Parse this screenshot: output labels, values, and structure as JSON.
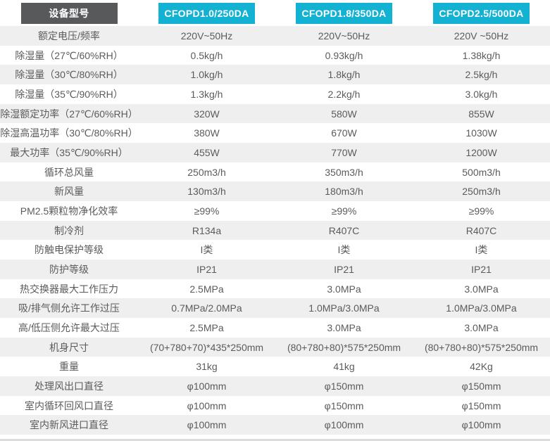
{
  "header": {
    "label_col_title": "设备型号",
    "models": [
      "CFOPD1.0/250DA",
      "CFOPD1.8/350DA",
      "CFOPD2.5/500DA"
    ]
  },
  "colors": {
    "header_dark_bg": "#58595b",
    "header_cyan_bg": "#14b2d2",
    "row_alt_bg": "#efefef",
    "text": "#5a5b5d",
    "header_text": "#ffffff",
    "bottom_border": "#dcdcdc"
  },
  "rows": [
    {
      "label": "额定电压/频率",
      "values": [
        "220V~50Hz",
        "220V~50Hz",
        "220V ~50Hz"
      ]
    },
    {
      "label": "除湿量（27℃/60%RH）",
      "values": [
        "0.5kg/h",
        "0.93kg/h",
        "1.38kg/h"
      ]
    },
    {
      "label": "除湿量（30℃/80%RH）",
      "values": [
        "1.0kg/h",
        "1.8kg/h",
        "2.5kg/h"
      ]
    },
    {
      "label": "除湿量（35℃/90%RH）",
      "values": [
        "1.3kg/h",
        "2.2kg/h",
        "3.0kg/h"
      ]
    },
    {
      "label": "除湿额定功率（27℃/60%RH）",
      "values": [
        "320W",
        "580W",
        "855W"
      ]
    },
    {
      "label": "除湿高温功率（30℃/80%RH）",
      "values": [
        "380W",
        "670W",
        "1030W"
      ]
    },
    {
      "label": "最大功率（35℃/90%RH）",
      "values": [
        "455W",
        "770W",
        "1200W"
      ]
    },
    {
      "label": "循环总风量",
      "values": [
        "250m3/h",
        "350m3/h",
        "500m3/h"
      ]
    },
    {
      "label": "新风量",
      "values": [
        "130m3/h",
        "180m3/h",
        "250m3/h"
      ]
    },
    {
      "label": "PM2.5颗粒物净化效率",
      "values": [
        "≥99%",
        "≥99%",
        "≥99%"
      ]
    },
    {
      "label": "制冷剂",
      "values": [
        "R134a",
        "R407C",
        "R407C"
      ]
    },
    {
      "label": "防触电保护等级",
      "values": [
        "I类",
        "I类",
        "I类"
      ]
    },
    {
      "label": "防护等级",
      "values": [
        "IP21",
        "IP21",
        "IP21"
      ]
    },
    {
      "label": "热交换器最大工作压力",
      "values": [
        "2.5MPa",
        "3.0MPa",
        "3.0MPa"
      ]
    },
    {
      "label": "吸/排气侧允许工作过压",
      "values": [
        "0.7MPa/2.0MPa",
        "1.0MPa/3.0MPa",
        "1.0MPa/3.0MPa"
      ]
    },
    {
      "label": "高/低压侧允许最大过压",
      "values": [
        "2.5MPa",
        "3.0MPa",
        "3.0MPa"
      ]
    },
    {
      "label": "机身尺寸",
      "values": [
        "(70+780+70)*435*250mm",
        "(80+780+80)*575*250mm",
        "(80+780+80)*575*250mm"
      ]
    },
    {
      "label": "重量",
      "values": [
        "31kg",
        "41kg",
        "42Kg"
      ]
    },
    {
      "label": "处理风出口直径",
      "values": [
        "φ100mm",
        "φ150mm",
        "φ150mm"
      ]
    },
    {
      "label": "室内循环回风口直径",
      "values": [
        "φ100mm",
        "φ150mm",
        "φ150mm"
      ]
    },
    {
      "label": "室内新风进口直径",
      "values": [
        "φ100mm",
        "φ100mm",
        "φ100mm"
      ]
    }
  ]
}
